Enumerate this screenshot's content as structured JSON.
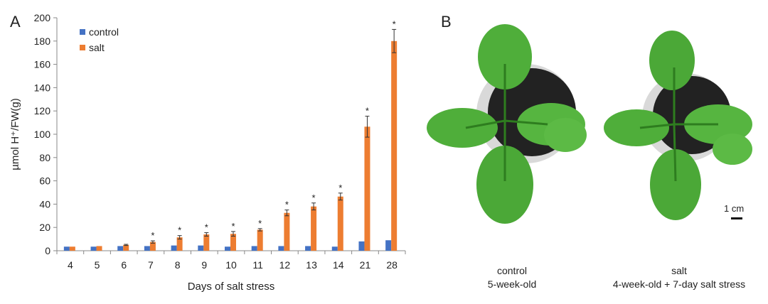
{
  "panels": {
    "a_label": "A",
    "b_label": "B"
  },
  "chart_data": {
    "type": "bar",
    "title": "",
    "xlabel": "Days of salt stress",
    "ylabel": "µmol H⁺/FW(g)",
    "ylim": [
      0,
      200
    ],
    "yticks": [
      0,
      20,
      40,
      60,
      80,
      100,
      120,
      140,
      160,
      180,
      200
    ],
    "categories": [
      "4",
      "5",
      "6",
      "7",
      "8",
      "9",
      "10",
      "11",
      "12",
      "13",
      "14",
      "21",
      "28"
    ],
    "legend_position": "top-left",
    "grid": false,
    "significance_marker": "*",
    "series": [
      {
        "name": "control",
        "color": "#4472C4",
        "values": [
          3.5,
          3.5,
          4,
          4,
          4.5,
          4.5,
          3.5,
          4,
          4,
          4,
          3.5,
          8,
          9
        ],
        "errors": [
          0,
          0,
          0,
          0,
          0,
          0,
          0,
          0,
          0,
          0,
          0,
          0,
          0
        ]
      },
      {
        "name": "salt",
        "color": "#ED7D31",
        "values": [
          3.5,
          4,
          5,
          7.5,
          11.5,
          14,
          14.5,
          18,
          32.5,
          38,
          46.5,
          106.5,
          180
        ],
        "errors": [
          0,
          0,
          0.5,
          1,
          1.5,
          1.5,
          2,
          1,
          2.5,
          3,
          3,
          9,
          10
        ],
        "significant": [
          false,
          false,
          false,
          true,
          true,
          true,
          true,
          true,
          true,
          true,
          true,
          true,
          true
        ]
      }
    ]
  },
  "photo": {
    "captions": [
      {
        "line1": "control",
        "line2": "5-week-old"
      },
      {
        "line1": "salt",
        "line2": "4-week-old + 7-day salt stress"
      }
    ],
    "scale_label": "1 cm",
    "leaf_color": "#4FAE3A",
    "leaf_dark_color": "#2E7D1F",
    "pot_color": "#222222"
  }
}
